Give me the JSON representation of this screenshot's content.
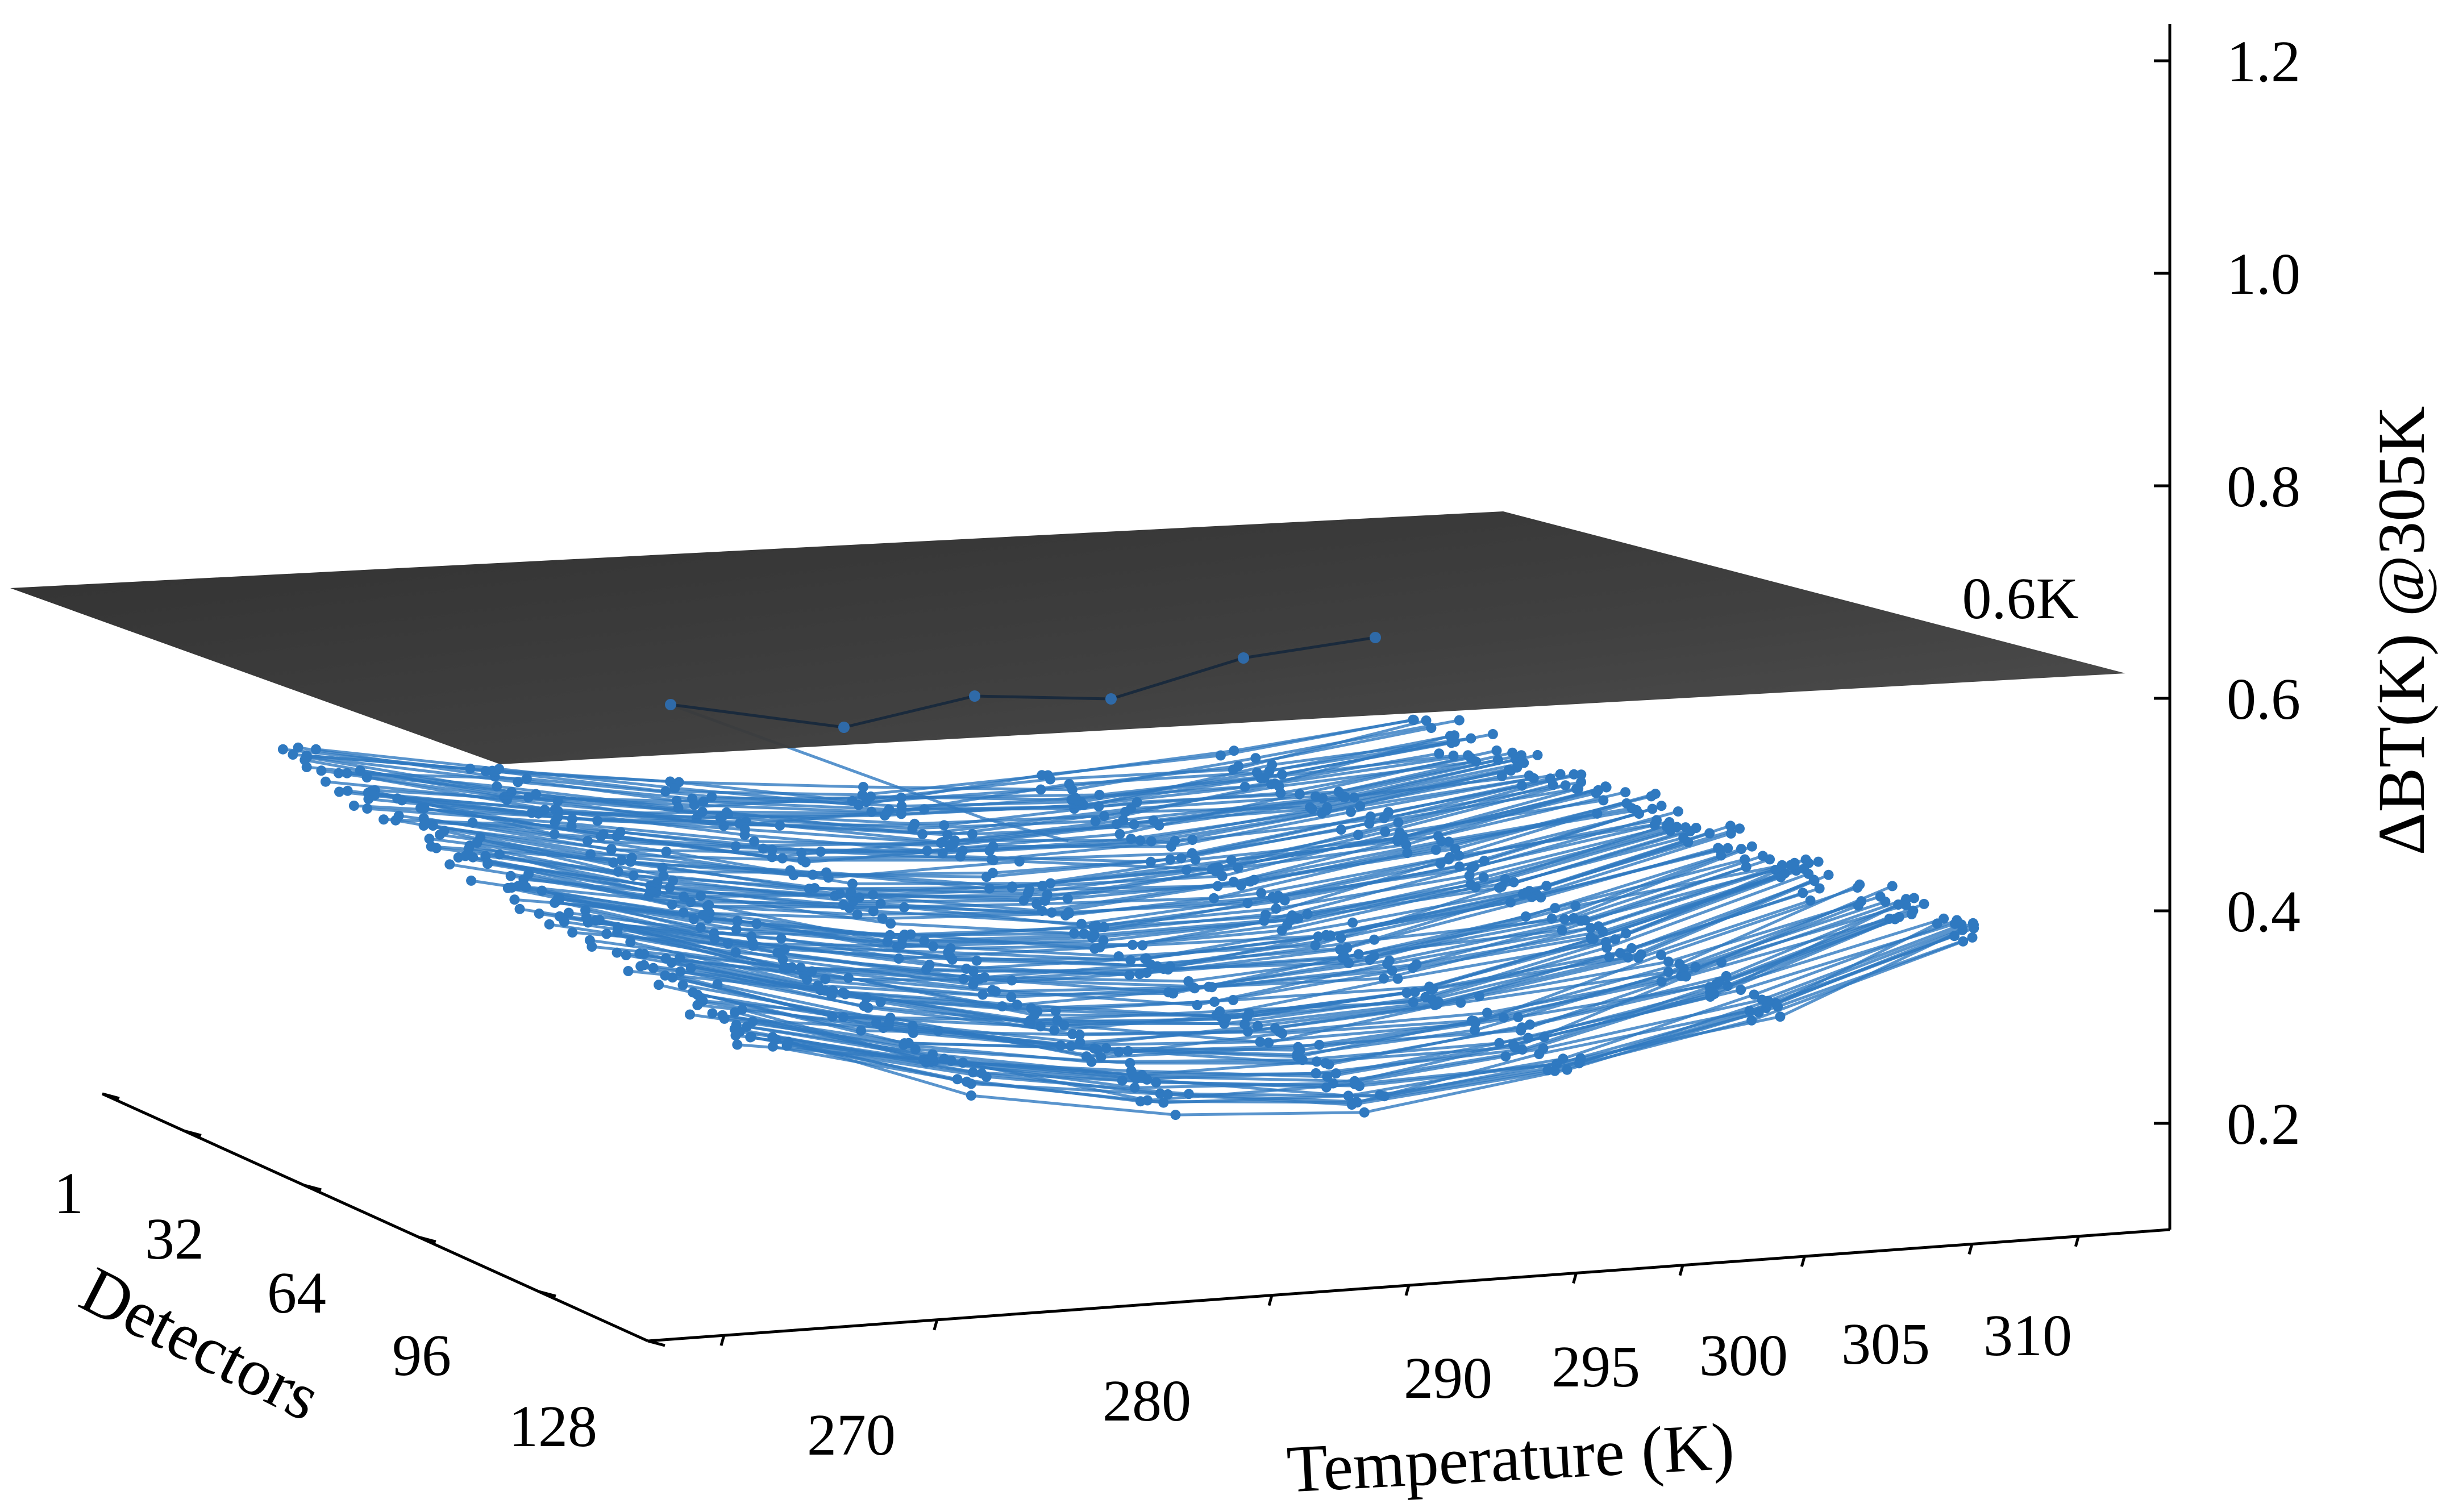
{
  "chart_data": {
    "type": "line",
    "projection": "3d",
    "zlabel": "ΔBT(K) @305K",
    "xlabel": "Temperature (K)",
    "ylabel": "Detectors",
    "x_ticks": [
      "270",
      "280",
      "290",
      "295",
      "300",
      "305",
      "310"
    ],
    "y_ticks": [
      "1",
      "32",
      "64",
      "96",
      "128"
    ],
    "z_ticks": [
      "0.2",
      "0.4",
      "0.6",
      "0.8",
      "1.0",
      "1.2"
    ],
    "zlim": [
      0.1,
      1.25
    ],
    "reference_plane": {
      "value": 0.6,
      "label": "0.6K",
      "color": "#2b2b2b"
    },
    "series_color": "#2f79c0",
    "highlight_series_color": "#1a2a3c",
    "x": [
      270,
      280,
      290,
      295,
      300,
      305,
      310
    ],
    "series_count": 128,
    "series_summary": {
      "first_detector_values": [
        0.55,
        0.54,
        0.53,
        0.53,
        0.53,
        0.51,
        0.55
      ],
      "last_detector_values": [
        0.27,
        0.25,
        0.24,
        0.25,
        0.25,
        0.26,
        0.3
      ],
      "highlighted_detector_values": [
        0.62,
        0.55,
        0.6,
        0.59,
        0.63,
        0.67,
        0.68
      ]
    }
  }
}
